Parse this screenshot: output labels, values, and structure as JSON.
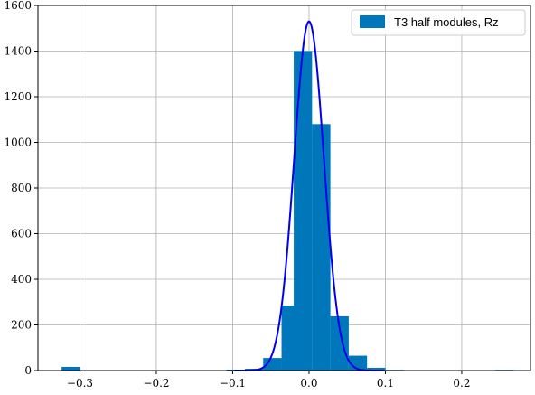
{
  "chart_data": {
    "type": "bar",
    "xlim": [
      -0.355,
      0.29
    ],
    "ylim": [
      0,
      1600
    ],
    "x_ticks": [
      -0.3,
      -0.2,
      -0.1,
      0.0,
      0.1,
      0.2
    ],
    "x_tick_labels": [
      "−0.3",
      "−0.2",
      "−0.1",
      "0.0",
      "0.1",
      "0.2"
    ],
    "y_ticks": [
      0,
      200,
      400,
      600,
      800,
      1000,
      1200,
      1400,
      1600
    ],
    "y_tick_labels": [
      "0",
      "200",
      "400",
      "600",
      "800",
      "1000",
      "1200",
      "1400",
      "1600"
    ],
    "grid": true,
    "legend_position": "top-right",
    "bar_color": "#0077bb",
    "curve_color": "#0000ee",
    "series": [
      {
        "name": "T3 half modules, Rz",
        "kind": "histogram",
        "bin_width": 0.024,
        "bins": [
          {
            "left": -0.324,
            "count": 16
          },
          {
            "left": -0.132,
            "count": 2
          },
          {
            "left": -0.108,
            "count": 4
          },
          {
            "left": -0.084,
            "count": 8
          },
          {
            "left": -0.06,
            "count": 55
          },
          {
            "left": -0.036,
            "count": 285
          },
          {
            "left": -0.02,
            "count": 1400
          },
          {
            "left": 0.004,
            "count": 1080
          },
          {
            "left": 0.028,
            "count": 238
          },
          {
            "left": 0.052,
            "count": 65
          },
          {
            "left": 0.076,
            "count": 12
          },
          {
            "left": 0.1,
            "count": 3
          },
          {
            "left": 0.148,
            "count": 2
          },
          {
            "left": 0.244,
            "count": 3
          }
        ]
      },
      {
        "kind": "gaussian",
        "amplitude": 1530,
        "mean": 0.0,
        "sigma": 0.0195
      }
    ]
  }
}
